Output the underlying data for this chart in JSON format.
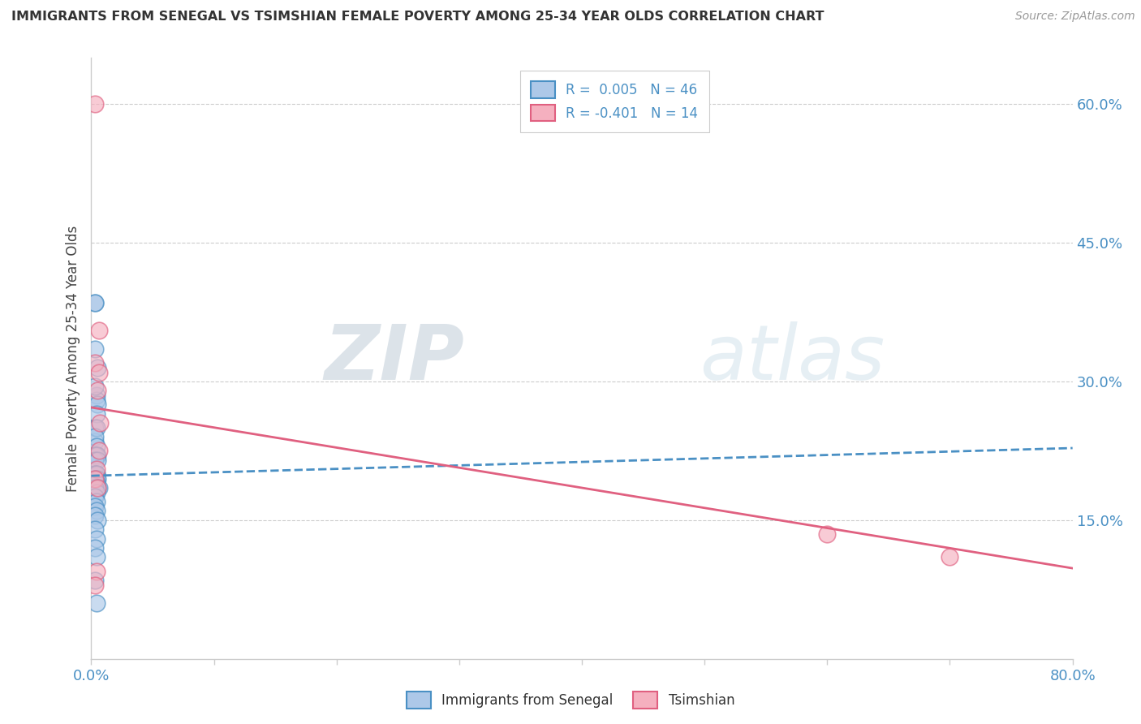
{
  "title": "IMMIGRANTS FROM SENEGAL VS TSIMSHIAN FEMALE POVERTY AMONG 25-34 YEAR OLDS CORRELATION CHART",
  "source": "Source: ZipAtlas.com",
  "ylabel": "Female Poverty Among 25-34 Year Olds",
  "xlim": [
    0.0,
    0.8
  ],
  "ylim": [
    0.0,
    0.65
  ],
  "xticks": [
    0.0,
    0.1,
    0.2,
    0.3,
    0.4,
    0.5,
    0.6,
    0.7,
    0.8
  ],
  "xticklabels_show": [
    "0.0%",
    "",
    "",
    "",
    "",
    "",
    "",
    "",
    "80.0%"
  ],
  "yticks_right": [
    0.15,
    0.3,
    0.45,
    0.6
  ],
  "yticklabels_right": [
    "15.0%",
    "30.0%",
    "45.0%",
    "60.0%"
  ],
  "blue_R": "0.005",
  "blue_N": "46",
  "pink_R": "-0.401",
  "pink_N": "14",
  "blue_color": "#adc8e8",
  "pink_color": "#f5b0bf",
  "blue_line_color": "#4a90c4",
  "pink_line_color": "#e06080",
  "grid_color": "#cccccc",
  "watermark_zip": "ZIP",
  "watermark_atlas": "atlas",
  "blue_scatter_x": [
    0.003,
    0.004,
    0.003,
    0.005,
    0.003,
    0.004,
    0.003,
    0.005,
    0.003,
    0.004,
    0.003,
    0.004,
    0.003,
    0.004,
    0.003,
    0.005,
    0.003,
    0.004,
    0.003,
    0.005,
    0.003,
    0.004,
    0.003,
    0.004,
    0.003,
    0.004,
    0.003,
    0.005,
    0.003,
    0.004,
    0.006,
    0.005,
    0.003,
    0.004,
    0.003,
    0.004,
    0.003,
    0.004,
    0.003,
    0.005,
    0.003,
    0.004,
    0.003,
    0.004,
    0.003,
    0.004
  ],
  "blue_scatter_y": [
    0.385,
    0.285,
    0.335,
    0.315,
    0.385,
    0.28,
    0.295,
    0.275,
    0.25,
    0.265,
    0.235,
    0.25,
    0.24,
    0.23,
    0.22,
    0.22,
    0.22,
    0.22,
    0.215,
    0.215,
    0.2,
    0.2,
    0.2,
    0.2,
    0.195,
    0.195,
    0.195,
    0.195,
    0.19,
    0.19,
    0.185,
    0.185,
    0.185,
    0.18,
    0.175,
    0.17,
    0.165,
    0.16,
    0.155,
    0.15,
    0.14,
    0.13,
    0.12,
    0.11,
    0.085,
    0.06
  ],
  "pink_scatter_x": [
    0.003,
    0.006,
    0.003,
    0.006,
    0.005,
    0.007,
    0.006,
    0.6,
    0.7,
    0.004,
    0.003,
    0.005,
    0.004,
    0.003
  ],
  "pink_scatter_y": [
    0.6,
    0.355,
    0.32,
    0.31,
    0.29,
    0.255,
    0.225,
    0.135,
    0.11,
    0.205,
    0.195,
    0.185,
    0.095,
    0.08
  ],
  "blue_line_x0": 0.0,
  "blue_line_x1": 0.8,
  "blue_line_y0": 0.198,
  "blue_line_y1": 0.228,
  "pink_line_x0": 0.0,
  "pink_line_x1": 0.8,
  "pink_line_y0": 0.272,
  "pink_line_y1": 0.098,
  "background_color": "#ffffff"
}
